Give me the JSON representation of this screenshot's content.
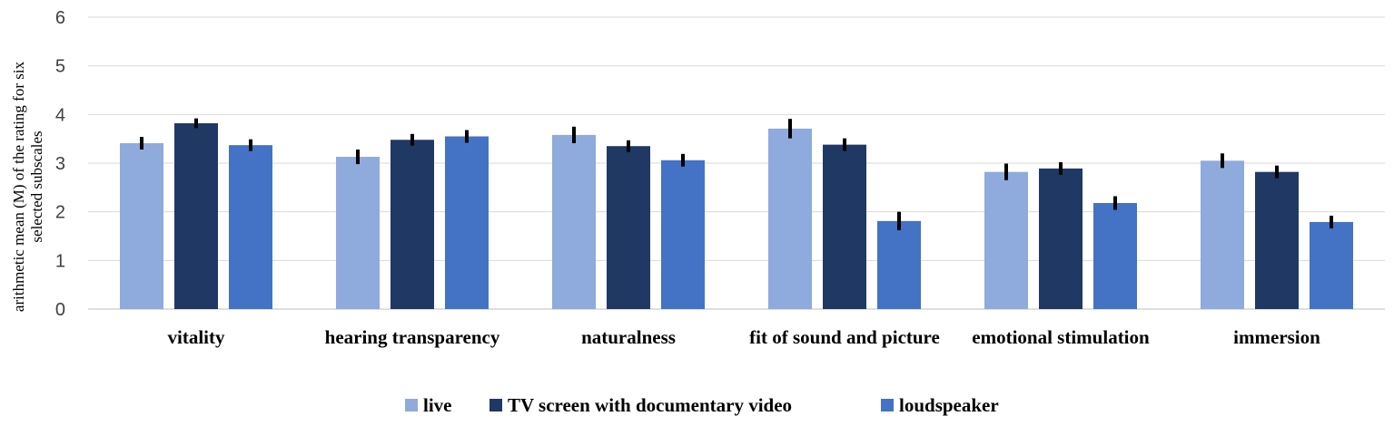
{
  "chart_data": {
    "type": "bar",
    "ylabel": "arithmetic mean (M) of the rating for six selected subscales",
    "xlabel": "",
    "ylim": [
      0,
      6
    ],
    "yticks": [
      "0",
      "1",
      "2",
      "3",
      "4",
      "5",
      "6"
    ],
    "grid": true,
    "legend_position": "bottom",
    "categories": [
      "vitality",
      "hearing transparency",
      "naturalness",
      "fit of sound and picture",
      "emotional stimulation",
      "immersion"
    ],
    "series": [
      {
        "name": "live",
        "color": "#8faadc",
        "values": [
          3.41,
          3.13,
          3.58,
          3.71,
          2.82,
          3.05
        ],
        "errors": [
          0.13,
          0.15,
          0.17,
          0.2,
          0.17,
          0.15
        ]
      },
      {
        "name": "TV screen with documentary video",
        "color": "#203864",
        "values": [
          3.82,
          3.48,
          3.35,
          3.38,
          2.89,
          2.82
        ],
        "errors": [
          0.1,
          0.12,
          0.12,
          0.13,
          0.13,
          0.13
        ]
      },
      {
        "name": "loudspeaker",
        "color": "#4472c4",
        "values": [
          3.37,
          3.55,
          3.06,
          1.81,
          2.18,
          1.79
        ],
        "errors": [
          0.12,
          0.13,
          0.13,
          0.19,
          0.14,
          0.13
        ]
      }
    ]
  }
}
